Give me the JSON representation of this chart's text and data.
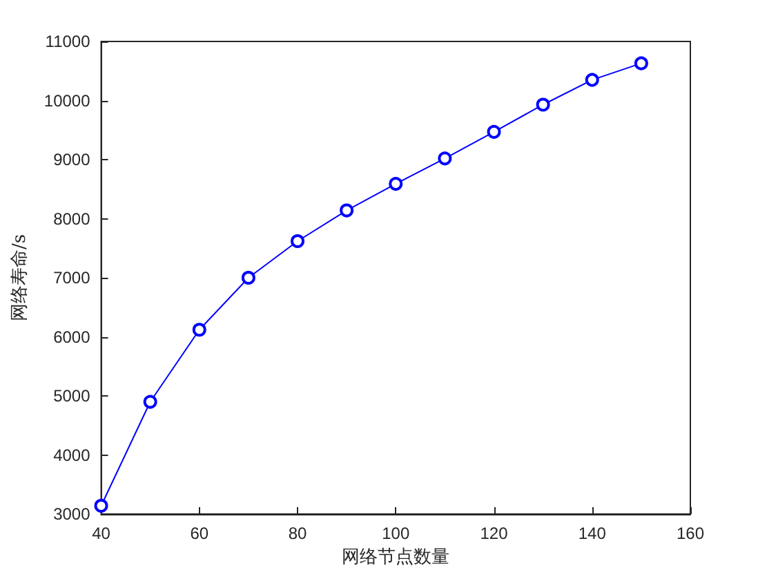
{
  "chart_data": {
    "type": "line",
    "xlabel": "网络节点数量",
    "ylabel": "网络寿命/s",
    "x": [
      40,
      50,
      60,
      70,
      80,
      90,
      100,
      110,
      120,
      130,
      140,
      150
    ],
    "series": [
      {
        "color": "#0000ff",
        "values": [
          3140,
          4900,
          6120,
          7000,
          7620,
          8140,
          8590,
          9020,
          9470,
          9930,
          10350,
          10630
        ]
      }
    ],
    "xlim": [
      40,
      160
    ],
    "xticks": [
      40,
      60,
      80,
      100,
      120,
      140,
      160
    ],
    "ylim": [
      3000,
      11000
    ],
    "yticks": [
      3000,
      4000,
      5000,
      6000,
      7000,
      8000,
      9000,
      10000,
      11000
    ],
    "grid": false,
    "marker": "circle",
    "line_style": "solid"
  }
}
